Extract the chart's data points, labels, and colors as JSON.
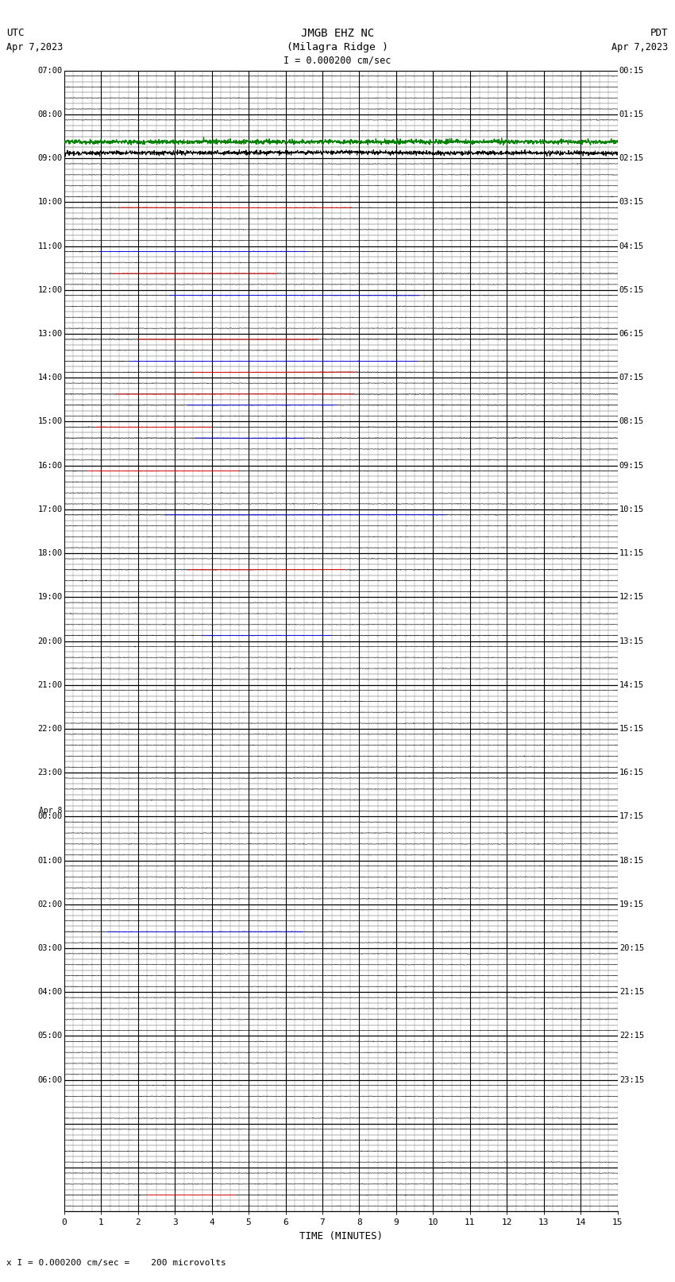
{
  "title_line1": "JMGB EHZ NC",
  "title_line2": "(Milagra Ridge )",
  "scale_bar_text": "I = 0.000200 cm/sec",
  "utc_label": "UTC",
  "utc_date": "Apr 7,2023",
  "pdt_label": "PDT",
  "pdt_date": "Apr 7,2023",
  "xlabel": "TIME (MINUTES)",
  "footer_text": "x I = 0.000200 cm/sec =    200 microvolts",
  "xlim": [
    0,
    15
  ],
  "xticks": [
    0,
    1,
    2,
    3,
    4,
    5,
    6,
    7,
    8,
    9,
    10,
    11,
    12,
    13,
    14,
    15
  ],
  "num_hours": 26,
  "subrows_per_hour": 4,
  "background_color": "#ffffff",
  "left_times_utc": [
    "07:00",
    "",
    "",
    "",
    "08:00",
    "",
    "",
    "",
    "09:00",
    "",
    "",
    "",
    "10:00",
    "",
    "",
    "",
    "11:00",
    "",
    "",
    "",
    "12:00",
    "",
    "",
    "",
    "13:00",
    "",
    "",
    "",
    "14:00",
    "",
    "",
    "",
    "15:00",
    "",
    "",
    "",
    "16:00",
    "",
    "",
    "",
    "17:00",
    "",
    "",
    "",
    "18:00",
    "",
    "",
    "",
    "19:00",
    "",
    "",
    "",
    "20:00",
    "",
    "",
    "",
    "21:00",
    "",
    "",
    "",
    "22:00",
    "",
    "",
    "",
    "23:00",
    "",
    "",
    "",
    "Apr 8\n00:00",
    "",
    "",
    "",
    "01:00",
    "",
    "",
    "",
    "02:00",
    "",
    "",
    "",
    "03:00",
    "",
    "",
    "",
    "04:00",
    "",
    "",
    "",
    "05:00",
    "",
    "",
    "",
    "06:00",
    "",
    "",
    ""
  ],
  "right_times_pdt": [
    "00:15",
    "",
    "",
    "",
    "01:15",
    "",
    "",
    "",
    "02:15",
    "",
    "",
    "",
    "03:15",
    "",
    "",
    "",
    "04:15",
    "",
    "",
    "",
    "05:15",
    "",
    "",
    "",
    "06:15",
    "",
    "",
    "",
    "07:15",
    "",
    "",
    "",
    "08:15",
    "",
    "",
    "",
    "09:15",
    "",
    "",
    "",
    "10:15",
    "",
    "",
    "",
    "11:15",
    "",
    "",
    "",
    "12:15",
    "",
    "",
    "",
    "13:15",
    "",
    "",
    "",
    "14:15",
    "",
    "",
    "",
    "15:15",
    "",
    "",
    "",
    "16:15",
    "",
    "",
    "",
    "17:15",
    "",
    "",
    "",
    "18:15",
    "",
    "",
    "",
    "19:15",
    "",
    "",
    "",
    "20:15",
    "",
    "",
    "",
    "21:15",
    "",
    "",
    "",
    "22:15",
    "",
    "",
    "",
    "23:15",
    "",
    "",
    ""
  ],
  "row_features": {
    "0": {
      "color": "#000000",
      "event": false
    },
    "1": {
      "color": "#000000",
      "event": false
    },
    "2": {
      "color": "#000000",
      "event": false
    },
    "3": {
      "color": "#000000",
      "event": false
    },
    "4": {
      "color": "#000000",
      "event": false
    },
    "5": {
      "color": "#000000",
      "event": false
    },
    "6": {
      "color": "#008000",
      "event": true,
      "event_color": "#008000",
      "amplitude": 0.45
    },
    "7": {
      "color": "#000000",
      "event": true,
      "event_color": "#000000",
      "amplitude": 0.9
    },
    "8": {
      "color": "#000000",
      "event": false
    },
    "9": {
      "color": "#000000",
      "event": false
    },
    "10": {
      "color": "#000000",
      "event": false
    },
    "11": {
      "color": "#000000",
      "event": false
    },
    "12": {
      "color": "#ff0000",
      "event": true,
      "event_color": "#ff0000",
      "amplitude": 0.12
    },
    "13": {
      "color": "#000000",
      "event": false
    },
    "14": {
      "color": "#000000",
      "event": false
    },
    "15": {
      "color": "#000000",
      "event": false
    },
    "16": {
      "color": "#0000ff",
      "event": true,
      "event_color": "#0000ff",
      "amplitude": 0.12
    },
    "17": {
      "color": "#000000",
      "event": false
    },
    "18": {
      "color": "#ff0000",
      "event": true,
      "event_color": "#ff0000",
      "amplitude": 0.08
    },
    "19": {
      "color": "#000000",
      "event": false
    },
    "20": {
      "color": "#0000ff",
      "event": true,
      "event_color": "#0000ff",
      "amplitude": 0.15
    },
    "21": {
      "color": "#000000",
      "event": false
    },
    "22": {
      "color": "#000000",
      "event": true,
      "event_color": "#000000",
      "amplitude": 0.15
    },
    "23": {
      "color": "#000000",
      "event": false
    },
    "24": {
      "color": "#ff0000",
      "event": true,
      "event_color": "#ff0000",
      "amplitude": 0.12
    },
    "25": {
      "color": "#000000",
      "event": false
    },
    "26": {
      "color": "#0000ff",
      "event": true,
      "event_color": "#0000ff",
      "amplitude": 0.25
    },
    "27": {
      "color": "#ff0000",
      "event": true,
      "event_color": "#ff0000",
      "amplitude": 0.15
    },
    "28": {
      "color": "#000000",
      "event": true,
      "event_color": "#000000",
      "amplitude": 0.18
    },
    "29": {
      "color": "#ff0000",
      "event": true,
      "event_color": "#ff0000",
      "amplitude": 0.12
    },
    "30": {
      "color": "#0000ff",
      "event": true,
      "event_color": "#0000ff",
      "amplitude": 0.12
    },
    "31": {
      "color": "#000000",
      "event": false
    },
    "32": {
      "color": "#ff0000",
      "event": true,
      "event_color": "#ff0000",
      "amplitude": 0.08
    },
    "33": {
      "color": "#0000ff",
      "event": true,
      "event_color": "#0000ff",
      "amplitude": 0.25
    },
    "34": {
      "color": "#000000",
      "event": false
    },
    "35": {
      "color": "#000000",
      "event": false
    },
    "36": {
      "color": "#ff0000",
      "event": true,
      "event_color": "#ff0000",
      "amplitude": 0.08
    },
    "37": {
      "color": "#000000",
      "event": false
    },
    "38": {
      "color": "#000000",
      "event": false
    },
    "39": {
      "color": "#000000",
      "event": false
    },
    "40": {
      "color": "#0000ff",
      "event": true,
      "event_color": "#0000ff",
      "amplitude": 0.12
    },
    "41": {
      "color": "#000000",
      "event": false
    },
    "42": {
      "color": "#000000",
      "event": false
    },
    "43": {
      "color": "#000000",
      "event": false
    },
    "44": {
      "color": "#000000",
      "event": true,
      "event_color": "#000000",
      "amplitude": 0.35
    },
    "45": {
      "color": "#ff0000",
      "event": true,
      "event_color": "#ff0000",
      "amplitude": 0.08
    },
    "46": {
      "color": "#000000",
      "event": false
    },
    "47": {
      "color": "#000000",
      "event": false
    },
    "48": {
      "color": "#000000",
      "event": false
    },
    "49": {
      "color": "#000000",
      "event": false
    },
    "50": {
      "color": "#000000",
      "event": false
    },
    "51": {
      "color": "#0000ff",
      "event": true,
      "event_color": "#0000ff",
      "amplitude": 0.08
    },
    "52": {
      "color": "#000000",
      "event": false
    },
    "53": {
      "color": "#000000",
      "event": false
    },
    "54": {
      "color": "#000000",
      "event": false
    },
    "55": {
      "color": "#000000",
      "event": false
    },
    "56": {
      "color": "#000000",
      "event": false
    },
    "57": {
      "color": "#000000",
      "event": false
    },
    "58": {
      "color": "#000000",
      "event": false
    },
    "59": {
      "color": "#000000",
      "event": false
    },
    "60": {
      "color": "#000000",
      "event": false
    },
    "61": {
      "color": "#000000",
      "event": false
    },
    "62": {
      "color": "#000000",
      "event": false
    },
    "63": {
      "color": "#000000",
      "event": false
    },
    "64": {
      "color": "#000000",
      "event": false
    },
    "65": {
      "color": "#000000",
      "event": false
    },
    "66": {
      "color": "#000000",
      "event": false
    },
    "67": {
      "color": "#000000",
      "event": false
    },
    "68": {
      "color": "#000000",
      "event": false
    },
    "69": {
      "color": "#000000",
      "event": false
    },
    "70": {
      "color": "#000000",
      "event": false
    },
    "71": {
      "color": "#000000",
      "event": false
    },
    "72": {
      "color": "#000000",
      "event": false
    },
    "73": {
      "color": "#000000",
      "event": false
    },
    "74": {
      "color": "#000000",
      "event": false
    },
    "75": {
      "color": "#000000",
      "event": false
    },
    "76": {
      "color": "#000000",
      "event": false
    },
    "77": {
      "color": "#000000",
      "event": false
    },
    "78": {
      "color": "#0000ff",
      "event": true,
      "event_color": "#0000ff",
      "amplitude": 0.08
    },
    "79": {
      "color": "#000000",
      "event": false
    },
    "80": {
      "color": "#000000",
      "event": false
    },
    "81": {
      "color": "#000000",
      "event": false
    },
    "82": {
      "color": "#000000",
      "event": false
    },
    "83": {
      "color": "#000000",
      "event": false
    },
    "84": {
      "color": "#000000",
      "event": false
    },
    "85": {
      "color": "#000000",
      "event": false
    },
    "86": {
      "color": "#000000",
      "event": false
    },
    "87": {
      "color": "#000000",
      "event": false
    },
    "88": {
      "color": "#000000",
      "event": false
    },
    "89": {
      "color": "#000000",
      "event": false
    },
    "90": {
      "color": "#000000",
      "event": false
    },
    "91": {
      "color": "#000000",
      "event": false
    },
    "92": {
      "color": "#000000",
      "event": false
    },
    "93": {
      "color": "#000000",
      "event": false
    },
    "94": {
      "color": "#000000",
      "event": false
    },
    "95": {
      "color": "#000000",
      "event": false
    },
    "96": {
      "color": "#000000",
      "event": true,
      "event_color": "#000000",
      "amplitude": 0.25
    },
    "97": {
      "color": "#000000",
      "event": false
    },
    "98": {
      "color": "#000000",
      "event": false
    },
    "99": {
      "color": "#000000",
      "event": false
    },
    "100": {
      "color": "#000000",
      "event": false
    },
    "101": {
      "color": "#000000",
      "event": false
    },
    "102": {
      "color": "#ff0000",
      "event": true,
      "event_color": "#ff0000",
      "amplitude": 0.06
    }
  },
  "figsize": [
    8.5,
    16.13
  ],
  "dpi": 100
}
